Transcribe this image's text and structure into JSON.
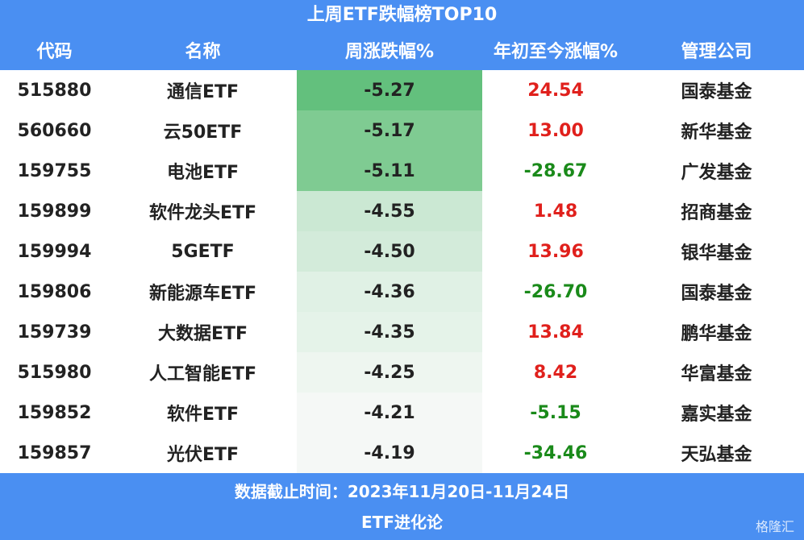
{
  "title": "上周ETF跌幅榜TOP10",
  "table": {
    "headers": [
      "代码",
      "名称",
      "周涨跌幅%",
      "年初至今涨幅%",
      "管理公司"
    ],
    "rows": [
      [
        "515880",
        "通信ETF",
        "-5.27",
        "24.54",
        "国泰基金"
      ],
      [
        "560660",
        "云50ETF",
        "-5.17",
        "13.00",
        "新华基金"
      ],
      [
        "159755",
        "电池ETF",
        "-5.11",
        "-28.67",
        "广发基金"
      ],
      [
        "159899",
        "软件龙头ETF",
        "-4.55",
        "1.48",
        "招商基金"
      ],
      [
        "159994",
        "5GETF",
        "-4.50",
        "13.96",
        "银华基金"
      ],
      [
        "159806",
        "新能源车ETF",
        "-4.36",
        "-26.70",
        "国泰基金"
      ],
      [
        "159739",
        "大数据ETF",
        "-4.35",
        "13.84",
        "鹏华基金"
      ],
      [
        "515980",
        "人工智能ETF",
        "-4.25",
        "8.42",
        "华富基金"
      ],
      [
        "159852",
        "软件ETF",
        "-4.21",
        "-5.15",
        "嘉实基金"
      ],
      [
        "159857",
        "光伏ETF",
        "-4.19",
        "-34.46",
        "天弘基金"
      ]
    ],
    "weekly_colors": [
      "#63c07d",
      "#7fcb92",
      "#7fcb92",
      "#cbe8d3",
      "#d3ebda",
      "#e0f1e5",
      "#e5f3e9",
      "#eef6f0",
      "#f5f8f6",
      "#f5f8f6"
    ]
  },
  "footer": {
    "note": "数据截止时间：2023年11月20日-11月24日",
    "source": "ETF进化论"
  },
  "watermark": "格隆汇"
}
